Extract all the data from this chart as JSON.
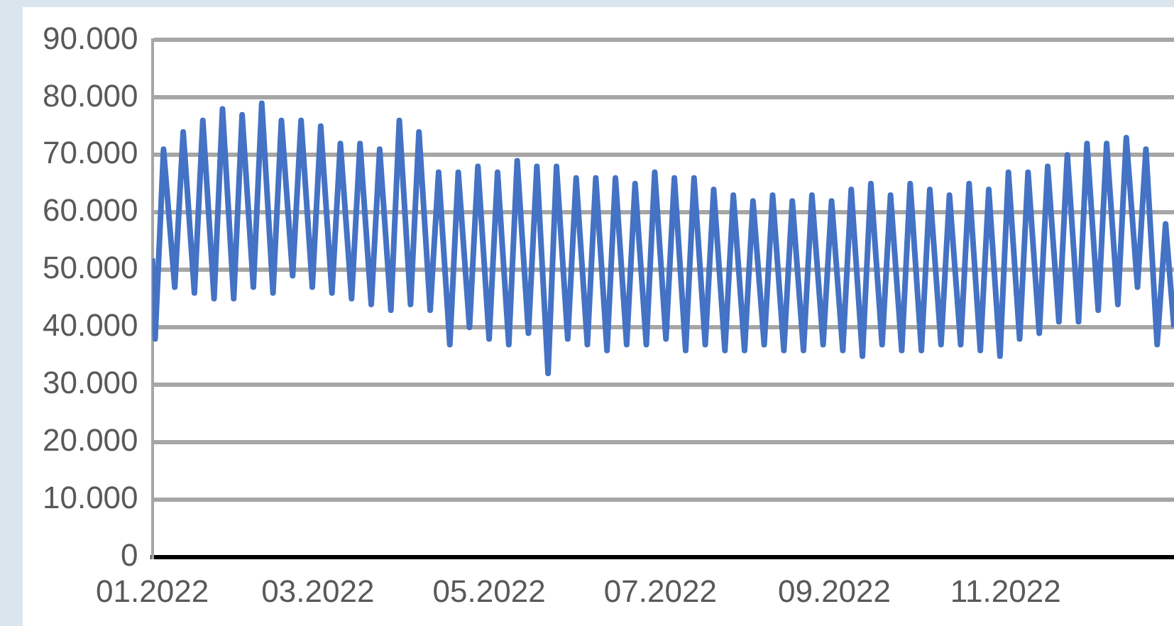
{
  "chart_data": {
    "type": "line",
    "xlim": [
      "2022-01-01",
      "2022-12-31"
    ],
    "xticks": [
      {
        "value": "2022-01-01",
        "label": "01.2022"
      },
      {
        "value": "2022-03-01",
        "label": "03.2022"
      },
      {
        "value": "2022-05-01",
        "label": "05.2022"
      },
      {
        "value": "2022-07-01",
        "label": "07.2022"
      },
      {
        "value": "2022-09-01",
        "label": "09.2022"
      },
      {
        "value": "2022-11-01",
        "label": "11.2022"
      }
    ],
    "ylim": [
      0,
      90000
    ],
    "yticks": [
      {
        "value": 0,
        "label": "0"
      },
      {
        "value": 10000,
        "label": "10.000"
      },
      {
        "value": 20000,
        "label": "20.000"
      },
      {
        "value": 30000,
        "label": "30.000"
      },
      {
        "value": 40000,
        "label": "40.000"
      },
      {
        "value": 50000,
        "label": "50.000"
      },
      {
        "value": 60000,
        "label": "60.000"
      },
      {
        "value": 70000,
        "label": "70.000"
      },
      {
        "value": 80000,
        "label": "80.000"
      },
      {
        "value": 90000,
        "label": "90.000"
      }
    ],
    "grid": "y",
    "marker": "none",
    "line_style": "solid",
    "series": [
      {
        "color": "#4472c4",
        "x": [
          "2022-01-01",
          "2022-01-02",
          "2022-01-05",
          "2022-01-09",
          "2022-01-12",
          "2022-01-16",
          "2022-01-19",
          "2022-01-23",
          "2022-01-26",
          "2022-01-30",
          "2022-02-02",
          "2022-02-06",
          "2022-02-09",
          "2022-02-13",
          "2022-02-16",
          "2022-02-20",
          "2022-02-23",
          "2022-02-27",
          "2022-03-02",
          "2022-03-06",
          "2022-03-09",
          "2022-03-13",
          "2022-03-16",
          "2022-03-20",
          "2022-03-23",
          "2022-03-27",
          "2022-03-30",
          "2022-04-03",
          "2022-04-06",
          "2022-04-10",
          "2022-04-13",
          "2022-04-17",
          "2022-04-20",
          "2022-04-24",
          "2022-04-27",
          "2022-05-01",
          "2022-05-04",
          "2022-05-08",
          "2022-05-11",
          "2022-05-15",
          "2022-05-18",
          "2022-05-22",
          "2022-05-25",
          "2022-05-29",
          "2022-06-01",
          "2022-06-05",
          "2022-06-08",
          "2022-06-12",
          "2022-06-15",
          "2022-06-19",
          "2022-06-22",
          "2022-06-26",
          "2022-06-29",
          "2022-07-03",
          "2022-07-06",
          "2022-07-10",
          "2022-07-13",
          "2022-07-17",
          "2022-07-20",
          "2022-07-24",
          "2022-07-27",
          "2022-07-31",
          "2022-08-03",
          "2022-08-07",
          "2022-08-10",
          "2022-08-14",
          "2022-08-17",
          "2022-08-21",
          "2022-08-24",
          "2022-08-28",
          "2022-08-31",
          "2022-09-04",
          "2022-09-07",
          "2022-09-11",
          "2022-09-14",
          "2022-09-18",
          "2022-09-21",
          "2022-09-25",
          "2022-09-28",
          "2022-10-02",
          "2022-10-05",
          "2022-10-09",
          "2022-10-12",
          "2022-10-16",
          "2022-10-19",
          "2022-10-23",
          "2022-10-26",
          "2022-10-30",
          "2022-11-02",
          "2022-11-06",
          "2022-11-09",
          "2022-11-13",
          "2022-11-16",
          "2022-11-20",
          "2022-11-23",
          "2022-11-27",
          "2022-11-30",
          "2022-12-04",
          "2022-12-07",
          "2022-12-11",
          "2022-12-14",
          "2022-12-18",
          "2022-12-21",
          "2022-12-25",
          "2022-12-28",
          "2022-12-31"
        ],
        "values": [
          52000,
          38000,
          71000,
          47000,
          74000,
          46000,
          76000,
          45000,
          78000,
          45000,
          77000,
          47000,
          79000,
          46000,
          76000,
          49000,
          76000,
          47000,
          75000,
          46000,
          72000,
          45000,
          72000,
          44000,
          71000,
          43000,
          76000,
          44000,
          74000,
          43000,
          67000,
          37000,
          67000,
          40000,
          68000,
          38000,
          67000,
          37000,
          69000,
          39000,
          68000,
          32000,
          68000,
          38000,
          66000,
          37000,
          66000,
          36000,
          66000,
          37000,
          65000,
          37000,
          67000,
          38000,
          66000,
          36000,
          66000,
          37000,
          64000,
          36000,
          63000,
          36000,
          62000,
          37000,
          63000,
          36000,
          62000,
          36000,
          63000,
          37000,
          62000,
          36000,
          64000,
          35000,
          65000,
          37000,
          63000,
          36000,
          65000,
          36000,
          64000,
          37000,
          63000,
          37000,
          65000,
          36000,
          64000,
          35000,
          67000,
          38000,
          67000,
          39000,
          68000,
          41000,
          70000,
          41000,
          72000,
          43000,
          72000,
          44000,
          73000,
          47000,
          71000,
          37000,
          58000,
          40000
        ]
      }
    ]
  }
}
